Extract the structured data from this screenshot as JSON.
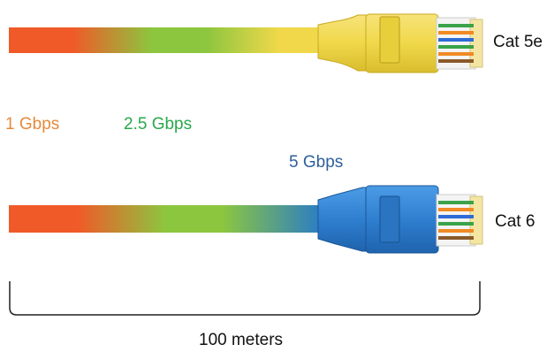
{
  "cables": [
    {
      "name": "Cat 5e",
      "plug_color": "#f0d84a",
      "max_speed": "2.5 Gbps"
    },
    {
      "name": "Cat 6",
      "plug_color": "#2f7fd0",
      "max_speed": "5 Gbps"
    }
  ],
  "speeds": [
    {
      "label": "1 Gbps",
      "color": "#e58a3a"
    },
    {
      "label": "2.5 Gbps",
      "color": "#2aa84a"
    },
    {
      "label": "5 Gbps",
      "color": "#2e5f9e"
    }
  ],
  "distance": {
    "label": "100 meters"
  },
  "colors": {
    "gradient": [
      "#f05a28",
      "#8cc63f",
      "#f0d84a",
      "#2a7cc7"
    ],
    "wires": [
      "#3aa34a",
      "#f08a24",
      "#2e6bd6",
      "#8a5a2b"
    ]
  }
}
